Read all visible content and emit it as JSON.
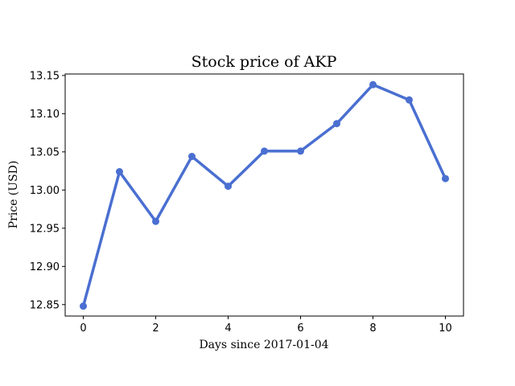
{
  "chart_data": {
    "type": "line",
    "title": "Stock price of AKP",
    "xlabel": "Days since 2017-01-04",
    "ylabel": "Price (USD)",
    "x": [
      0,
      1,
      2,
      3,
      4,
      5,
      6,
      7,
      8,
      9,
      10
    ],
    "series": [
      {
        "values": [
          12.848,
          13.024,
          12.959,
          13.044,
          13.005,
          13.051,
          13.051,
          13.087,
          13.138,
          13.118,
          13.015
        ],
        "color": "#4a6fd1"
      }
    ],
    "xlim": [
      -0.5,
      10.5
    ],
    "ylim": [
      12.835,
      13.152
    ],
    "xticks": [
      0,
      2,
      4,
      6,
      8,
      10
    ],
    "xtick_labels": [
      "0",
      "2",
      "4",
      "6",
      "8",
      "10"
    ],
    "yticks": [
      12.85,
      12.9,
      12.95,
      13.0,
      13.05,
      13.1,
      13.15
    ],
    "ytick_labels": [
      "12.85",
      "12.90",
      "12.95",
      "13.00",
      "13.05",
      "13.10",
      "13.15"
    ],
    "grid": false,
    "legend": false,
    "markers": true
  }
}
